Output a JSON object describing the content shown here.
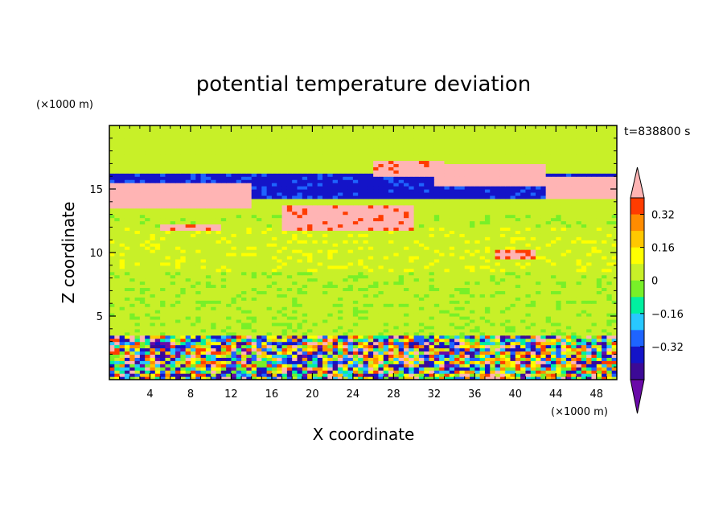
{
  "chart_data": {
    "type": "heatmap",
    "title": "potential temperature deviation",
    "xlabel": "X coordinate",
    "ylabel": "Z coordinate",
    "x_unit": "(×1000 m)",
    "y_unit": "(×1000 m)",
    "time_label": "t=838800 s",
    "xlim": [
      0,
      50
    ],
    "ylim": [
      0,
      20
    ],
    "x_ticks": [
      "4",
      "8",
      "12",
      "16",
      "20",
      "24",
      "28",
      "32",
      "36",
      "40",
      "44",
      "48"
    ],
    "y_ticks": [
      "5",
      "10",
      "15"
    ],
    "colorbar": {
      "levels": [
        -0.48,
        -0.4,
        -0.32,
        -0.24,
        -0.16,
        -0.08,
        0,
        0.08,
        0.16,
        0.24,
        0.32,
        0.4,
        0.48
      ],
      "tick_labels": [
        "0.32",
        "0.16",
        "0",
        "−0.16",
        "−0.32"
      ],
      "tick_values": [
        0.32,
        0.16,
        0,
        -0.16,
        -0.32
      ],
      "colors": [
        "#6a0aa8",
        "#3c0a96",
        "#1414c8",
        "#1e64ff",
        "#28c8ff",
        "#00f0a0",
        "#78f028",
        "#c8f028",
        "#ffff00",
        "#ffc800",
        "#ff8c00",
        "#ff3c00",
        "#ffb4b4"
      ],
      "extend": "both"
    },
    "features": [
      {
        "x": [
          0,
          50
        ],
        "z": [
          3.6,
          13.0
        ],
        "value": 0.02
      },
      {
        "x": [
          0,
          50
        ],
        "z": [
          8.5,
          12.0
        ],
        "value": 0.06
      },
      {
        "x": [
          0,
          50
        ],
        "z": [
          14.3,
          16.3
        ],
        "value": -0.34
      },
      {
        "x": [
          0,
          14
        ],
        "z": [
          13.4,
          15.4
        ],
        "value": 0.44
      },
      {
        "x": [
          17,
          30
        ],
        "z": [
          11.8,
          13.8
        ],
        "value": 0.42
      },
      {
        "x": [
          26,
          33
        ],
        "z": [
          16.0,
          17.3
        ],
        "value": 0.42
      },
      {
        "x": [
          32,
          43
        ],
        "z": [
          15.2,
          17.0
        ],
        "value": 0.46
      },
      {
        "x": [
          43,
          50
        ],
        "z": [
          14.3,
          16.0
        ],
        "value": 0.46
      },
      {
        "x": [
          5,
          11
        ],
        "z": [
          11.7,
          12.3
        ],
        "value": 0.4
      },
      {
        "x": [
          38,
          42
        ],
        "z": [
          9.5,
          10.3
        ],
        "value": 0.4
      },
      {
        "x": [
          0,
          50
        ],
        "z": [
          0,
          3.6
        ],
        "value": "mixed"
      }
    ]
  }
}
